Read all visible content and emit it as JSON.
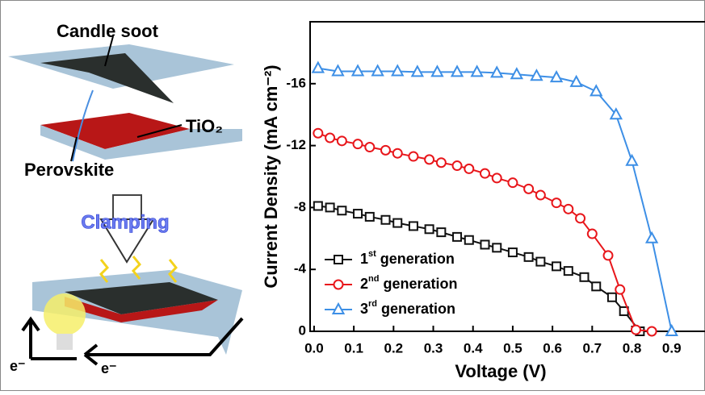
{
  "diagram": {
    "labels": {
      "candle_soot": "Candle soot",
      "tio2": "TiO₂",
      "perovskite": "Perovskite",
      "clamping": "Clamping",
      "electron_1": "e⁻",
      "electron_2": "e⁻"
    }
  },
  "chart_data": {
    "type": "line",
    "x_label": "Voltage (V)",
    "y_label": "Current Density (mA cm⁻²)",
    "xlim": [
      -0.01,
      0.99
    ],
    "ylim": [
      0,
      -20
    ],
    "xticks": [
      {
        "value": 0,
        "label": "0.0"
      },
      0.1,
      0.2,
      0.3,
      0.4,
      0.5,
      0.6,
      0.7,
      0.8,
      0.9
    ],
    "yticks": [
      0,
      -4,
      -8,
      -12,
      -16
    ],
    "legend": "lower-left",
    "series": [
      {
        "name": "1st generation",
        "color": "#111111",
        "marker": "square",
        "x": [
          0.01,
          0.04,
          0.07,
          0.11,
          0.14,
          0.18,
          0.21,
          0.25,
          0.29,
          0.32,
          0.36,
          0.39,
          0.43,
          0.46,
          0.5,
          0.54,
          0.57,
          0.61,
          0.64,
          0.68,
          0.71,
          0.75,
          0.78,
          0.82
        ],
        "values": [
          -8.1,
          -8.0,
          -7.8,
          -7.6,
          -7.4,
          -7.2,
          -7.0,
          -6.8,
          -6.6,
          -6.4,
          -6.1,
          -5.9,
          -5.6,
          -5.4,
          -5.1,
          -4.8,
          -4.5,
          -4.2,
          -3.9,
          -3.5,
          -2.9,
          -2.2,
          -1.3,
          0
        ]
      },
      {
        "name": "2nd generation",
        "color": "#e8161b",
        "marker": "circle",
        "x": [
          0.01,
          0.04,
          0.07,
          0.11,
          0.14,
          0.18,
          0.21,
          0.25,
          0.29,
          0.32,
          0.36,
          0.39,
          0.43,
          0.46,
          0.5,
          0.54,
          0.57,
          0.61,
          0.64,
          0.67,
          0.7,
          0.74,
          0.77,
          0.81,
          0.85
        ],
        "values": [
          -12.8,
          -12.5,
          -12.3,
          -12.1,
          -11.9,
          -11.7,
          -11.5,
          -11.3,
          -11.1,
          -10.9,
          -10.7,
          -10.5,
          -10.2,
          -9.9,
          -9.6,
          -9.2,
          -8.8,
          -8.3,
          -7.9,
          -7.3,
          -6.3,
          -4.9,
          -2.7,
          -0.1,
          0
        ]
      },
      {
        "name": "3rd generation",
        "color": "#3d8fe6",
        "marker": "triangle",
        "x": [
          0.01,
          0.06,
          0.11,
          0.16,
          0.21,
          0.26,
          0.31,
          0.36,
          0.41,
          0.46,
          0.51,
          0.56,
          0.61,
          0.66,
          0.71,
          0.76,
          0.8,
          0.85,
          0.9
        ],
        "values": [
          -17.0,
          -16.8,
          -16.8,
          -16.8,
          -16.8,
          -16.75,
          -16.75,
          -16.75,
          -16.75,
          -16.7,
          -16.6,
          -16.5,
          -16.4,
          -16.1,
          -15.5,
          -14.0,
          -11.0,
          -6.0,
          0
        ]
      }
    ]
  }
}
